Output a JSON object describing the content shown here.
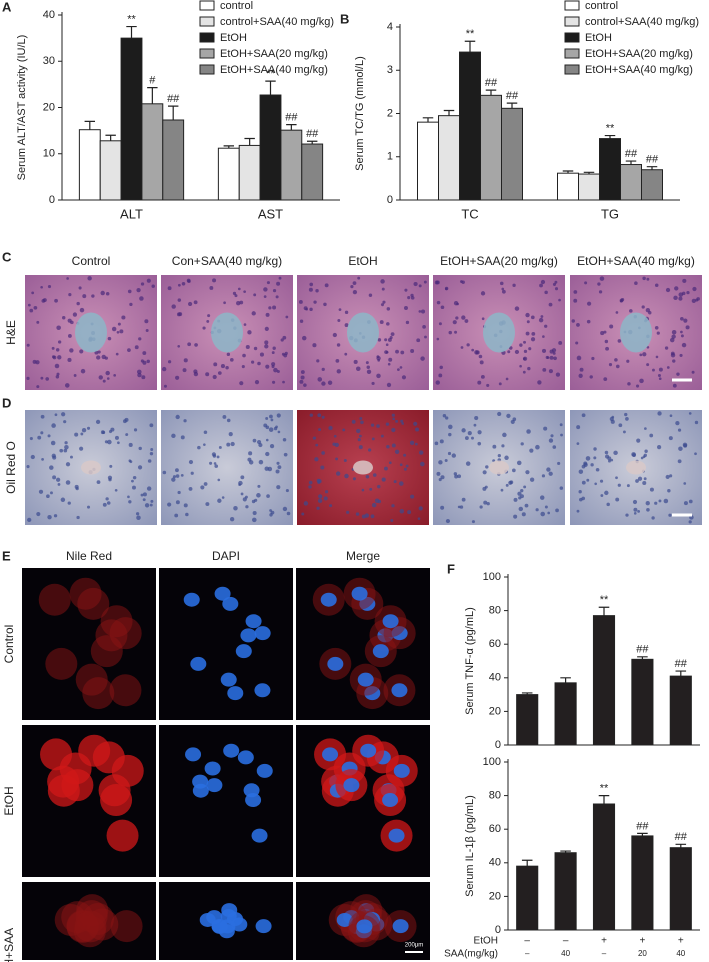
{
  "chart_data": [
    {
      "type": "bar",
      "panel": "A",
      "ylabel": "Serum ALT/AST activity (IU/L)",
      "categories": [
        "ALT",
        "AST"
      ],
      "ylim": [
        0,
        40
      ],
      "yticks": [
        0,
        10,
        20,
        30,
        40
      ],
      "series": [
        {
          "name": "control",
          "color": "#ffffff",
          "values": [
            15.2,
            11.2
          ],
          "errors": [
            1.8,
            0.5
          ],
          "significance": [
            null,
            null
          ]
        },
        {
          "name": "control+SAA(40 mg/kg)",
          "color": "#e4e4e4",
          "values": [
            12.8,
            11.8
          ],
          "errors": [
            1.2,
            1.5
          ],
          "significance": [
            null,
            null
          ]
        },
        {
          "name": "EtOH",
          "color": "#1c1c1c",
          "values": [
            35,
            22.7
          ],
          "errors": [
            2.5,
            3.0
          ],
          "significance": [
            "**",
            "**"
          ]
        },
        {
          "name": "EtOH+SAA(20 mg/kg)",
          "color": "#a6a6a6",
          "values": [
            20.8,
            15.1
          ],
          "errors": [
            3.5,
            1.2
          ],
          "significance": [
            "#",
            "##"
          ]
        },
        {
          "name": "EtOH+SAA(40 mg/kg)",
          "color": "#858585",
          "values": [
            17.3,
            12.1
          ],
          "errors": [
            3.0,
            0.6
          ],
          "significance": [
            "##",
            "##"
          ]
        }
      ]
    },
    {
      "type": "bar",
      "panel": "B",
      "ylabel": "Serum TC/TG (mmol/L)",
      "categories": [
        "TC",
        "TG"
      ],
      "ylim": [
        0,
        4
      ],
      "yticks": [
        0,
        1,
        2,
        3,
        4
      ],
      "series": [
        {
          "name": "control",
          "color": "#ffffff",
          "values": [
            1.8,
            0.62
          ],
          "errors": [
            0.1,
            0.05
          ],
          "significance": [
            null,
            null
          ]
        },
        {
          "name": "control+SAA(40 mg/kg)",
          "color": "#e4e4e4",
          "values": [
            1.95,
            0.6
          ],
          "errors": [
            0.12,
            0.04
          ],
          "significance": [
            null,
            null
          ]
        },
        {
          "name": "EtOH",
          "color": "#1c1c1c",
          "values": [
            3.42,
            1.42
          ],
          "errors": [
            0.25,
            0.07
          ],
          "significance": [
            "**",
            "**"
          ]
        },
        {
          "name": "EtOH+SAA(20 mg/kg)",
          "color": "#a6a6a6",
          "values": [
            2.42,
            0.82
          ],
          "errors": [
            0.12,
            0.08
          ],
          "significance": [
            "##",
            "##"
          ]
        },
        {
          "name": "EtOH+SAA(40 mg/kg)",
          "color": "#858585",
          "values": [
            2.12,
            0.7
          ],
          "errors": [
            0.12,
            0.07
          ],
          "significance": [
            "##",
            "##"
          ]
        }
      ]
    },
    {
      "type": "bar",
      "panel": "F",
      "ylabel": "Serum TNF-α  (pg/mL)",
      "color": "#231f20",
      "categories": [
        null,
        null,
        null,
        null,
        null
      ],
      "ylim": [
        0,
        100
      ],
      "yticks": [
        0,
        20,
        40,
        60,
        80,
        100
      ],
      "values": [
        30,
        37,
        77,
        51,
        41
      ],
      "errors": [
        1,
        3,
        5,
        1.5,
        3
      ],
      "significance": [
        null,
        null,
        "**",
        "##",
        "##"
      ]
    },
    {
      "type": "bar",
      "ylabel": "Serum IL-1β  (pg/mL)",
      "color": "#231f20",
      "categories": [
        null,
        null,
        null,
        null,
        null
      ],
      "ylim": [
        0,
        100
      ],
      "yticks": [
        0,
        20,
        40,
        60,
        80,
        100
      ],
      "values": [
        38,
        46,
        75,
        56,
        49
      ],
      "errors": [
        3.5,
        1,
        5,
        1.5,
        2
      ],
      "significance": [
        null,
        null,
        "**",
        "##",
        "##"
      ]
    }
  ],
  "treatment": {
    "rows": [
      {
        "label": "EtOH",
        "values": [
          "–",
          "–",
          "+",
          "+",
          "+"
        ]
      },
      {
        "label": "SAA(mg/kg)",
        "values": [
          "–",
          "40",
          "–",
          "20",
          "40"
        ]
      }
    ]
  },
  "histology": {
    "panels": [
      "C",
      "D"
    ],
    "columns": [
      "Control",
      "Con+SAA(40 mg/kg)",
      "EtOH",
      "EtOH+SAA(20 mg/kg)",
      "EtOH+SAA(40 mg/kg)"
    ],
    "rows": [
      "H&E",
      "Oil Red O"
    ]
  },
  "fluorescence": {
    "panel": "E",
    "columns": [
      "Nile  Red",
      "DAPI",
      "Merge"
    ],
    "rows": [
      "Control",
      "EtOH",
      "EtOH+SAA"
    ],
    "scale_bar": "200μm"
  }
}
